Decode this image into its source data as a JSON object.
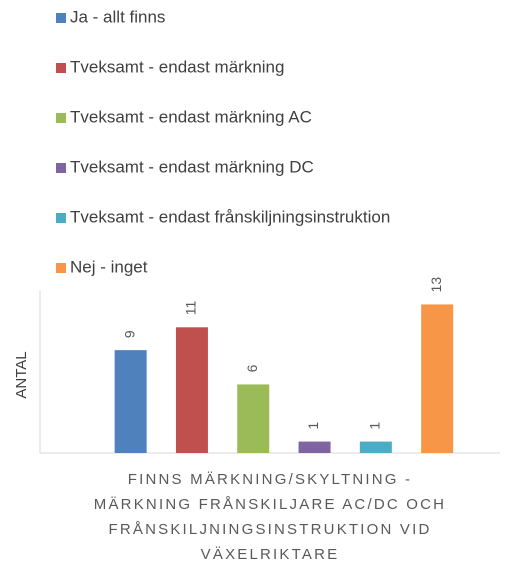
{
  "chart_data": {
    "type": "bar",
    "categories": [
      null
    ],
    "series": [
      {
        "name": "Ja - allt finns",
        "color": "#4f81bd",
        "values": [
          9
        ]
      },
      {
        "name": "Tveksamt - endast märkning",
        "color": "#c0504d",
        "values": [
          11
        ]
      },
      {
        "name": "Tveksamt - endast märkning AC",
        "color": "#9bbb59",
        "values": [
          6
        ]
      },
      {
        "name": "Tveksamt - endast märkning DC",
        "color": "#8064a2",
        "values": [
          1
        ]
      },
      {
        "name": "Tveksamt - endast frånskiljningsinstruktion",
        "color": "#4bacc6",
        "values": [
          1
        ]
      },
      {
        "name": "Nej - inget",
        "color": "#f79646",
        "values": [
          13
        ]
      }
    ],
    "y_label": "ANTAL",
    "x_label": [
      "FINNS MÄRKNING/SKYLTNING -",
      "MÄRKNING FRÅNSKILJARE AC/DC OCH",
      "FRÅNSKILJNINGSINSTRUKTION VID",
      "VÄXELRIKTARE"
    ],
    "ylim": [
      0,
      14
    ],
    "legend": "top"
  }
}
